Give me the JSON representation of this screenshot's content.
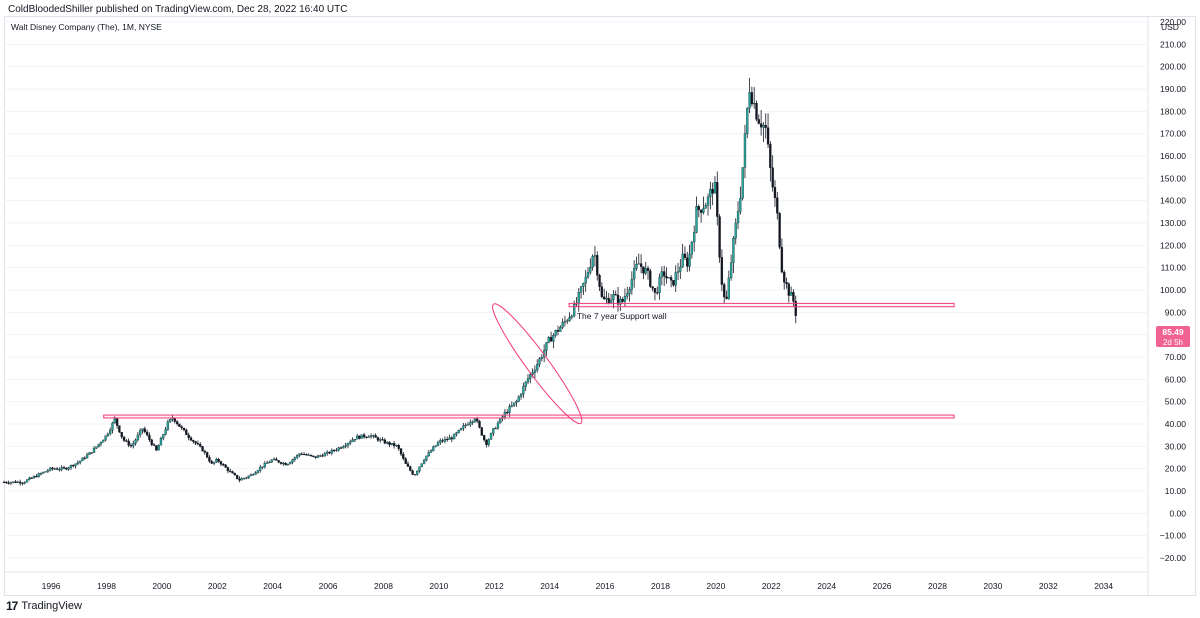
{
  "header": {
    "published": "ColdBloodedShiller published on TradingView.com, Dec 28, 2022 16:40 UTC"
  },
  "footer": {
    "brand": "TradingView",
    "logo_icon": "tradingview-logo-icon"
  },
  "colors": {
    "up": "#26a69a",
    "down": "#131722",
    "candle": "#131722",
    "annotation": "#f23a7a",
    "price_label_bg": "#f06292",
    "axis_text": "#131722",
    "grid": "#f0f3fa"
  },
  "chart_data": {
    "type": "candlestick",
    "title": "Walt Disney Company (The), 1M, NYSE",
    "currency": "USD",
    "timeframe": "1M",
    "y_ticks": [
      -20,
      -10,
      0,
      10,
      20,
      30,
      40,
      50,
      60,
      70,
      80,
      90,
      100,
      110,
      120,
      130,
      140,
      150,
      160,
      170,
      180,
      190,
      200,
      210,
      220
    ],
    "y_tick_labels": [
      "−20.00",
      "−10.00",
      "0.00",
      "10.00",
      "20.00",
      "30.00",
      "40.00",
      "50.00",
      "60.00",
      "70.00",
      "80.00",
      "90.00",
      "100.00",
      "110.00",
      "120.00",
      "130.00",
      "140.00",
      "150.00",
      "160.00",
      "170.00",
      "180.00",
      "190.00",
      "200.00",
      "210.00",
      "220.00"
    ],
    "ylim": [
      -24,
      225
    ],
    "x_ticks": [
      "1996",
      "1998",
      "2000",
      "2002",
      "2004",
      "2006",
      "2008",
      "2010",
      "2012",
      "2014",
      "2016",
      "2018",
      "2020",
      "2022",
      "2024",
      "2026",
      "2028",
      "2030",
      "2032",
      "2034"
    ],
    "xlim": [
      1994.3,
      2035.6
    ],
    "last_price": "85.49",
    "last_price_countdown": "2d 5h",
    "price_path": [
      [
        1994.3,
        14
      ],
      [
        1995.0,
        14
      ],
      [
        1995.5,
        17
      ],
      [
        1996.0,
        20
      ],
      [
        1996.5,
        20
      ],
      [
        1997.0,
        23
      ],
      [
        1997.5,
        28
      ],
      [
        1998.0,
        35
      ],
      [
        1998.3,
        42
      ],
      [
        1998.6,
        33
      ],
      [
        1998.9,
        30
      ],
      [
        1999.3,
        38
      ],
      [
        1999.8,
        28
      ],
      [
        2000.2,
        40
      ],
      [
        2000.4,
        43
      ],
      [
        2000.7,
        38
      ],
      [
        2001.0,
        34
      ],
      [
        2001.5,
        28
      ],
      [
        2001.8,
        22
      ],
      [
        2002.0,
        24
      ],
      [
        2002.5,
        18
      ],
      [
        2002.8,
        15
      ],
      [
        2003.2,
        17
      ],
      [
        2003.6,
        21
      ],
      [
        2004.0,
        24
      ],
      [
        2004.5,
        22
      ],
      [
        2005.0,
        27
      ],
      [
        2005.5,
        25
      ],
      [
        2006.0,
        27
      ],
      [
        2006.5,
        30
      ],
      [
        2007.0,
        34
      ],
      [
        2007.5,
        35
      ],
      [
        2008.0,
        32
      ],
      [
        2008.5,
        30
      ],
      [
        2008.8,
        22
      ],
      [
        2009.1,
        17
      ],
      [
        2009.5,
        25
      ],
      [
        2010.0,
        32
      ],
      [
        2010.5,
        34
      ],
      [
        2011.0,
        40
      ],
      [
        2011.3,
        43
      ],
      [
        2011.7,
        31
      ],
      [
        2012.0,
        38
      ],
      [
        2012.4,
        45
      ],
      [
        2012.8,
        50
      ],
      [
        2013.2,
        60
      ],
      [
        2013.6,
        68
      ],
      [
        2014.0,
        78
      ],
      [
        2014.5,
        85
      ],
      [
        2014.9,
        92
      ],
      [
        2015.3,
        105
      ],
      [
        2015.6,
        118
      ],
      [
        2015.9,
        95
      ],
      [
        2016.3,
        97
      ],
      [
        2016.6,
        94
      ],
      [
        2016.9,
        103
      ],
      [
        2017.2,
        112
      ],
      [
        2017.5,
        108
      ],
      [
        2017.8,
        98
      ],
      [
        2018.1,
        108
      ],
      [
        2018.4,
        102
      ],
      [
        2018.8,
        114
      ],
      [
        2019.0,
        112
      ],
      [
        2019.3,
        135
      ],
      [
        2019.7,
        140
      ],
      [
        2019.95,
        148
      ],
      [
        2020.2,
        105
      ],
      [
        2020.35,
        92
      ],
      [
        2020.6,
        118
      ],
      [
        2020.9,
        145
      ],
      [
        2021.1,
        175
      ],
      [
        2021.2,
        192
      ],
      [
        2021.5,
        178
      ],
      [
        2021.8,
        172
      ],
      [
        2022.0,
        150
      ],
      [
        2022.2,
        135
      ],
      [
        2022.4,
        108
      ],
      [
        2022.6,
        100
      ],
      [
        2022.8,
        95
      ],
      [
        2022.95,
        85.49
      ]
    ],
    "annotations": [
      {
        "type": "rectangle",
        "x_start": 2014.7,
        "x_end": 2028.6,
        "y_low": 92.5,
        "y_high": 94.0
      },
      {
        "type": "rectangle",
        "x_start": 1997.9,
        "x_end": 2028.6,
        "y_low": 42.7,
        "y_high": 44.0
      },
      {
        "type": "ellipse",
        "x_start": 2012.1,
        "x_end": 2015.0,
        "y_low": 42.5,
        "y_high": 91.5
      },
      {
        "type": "text",
        "text": "The 7 year Support wall",
        "x": 2016.6,
        "y": 87
      }
    ]
  }
}
